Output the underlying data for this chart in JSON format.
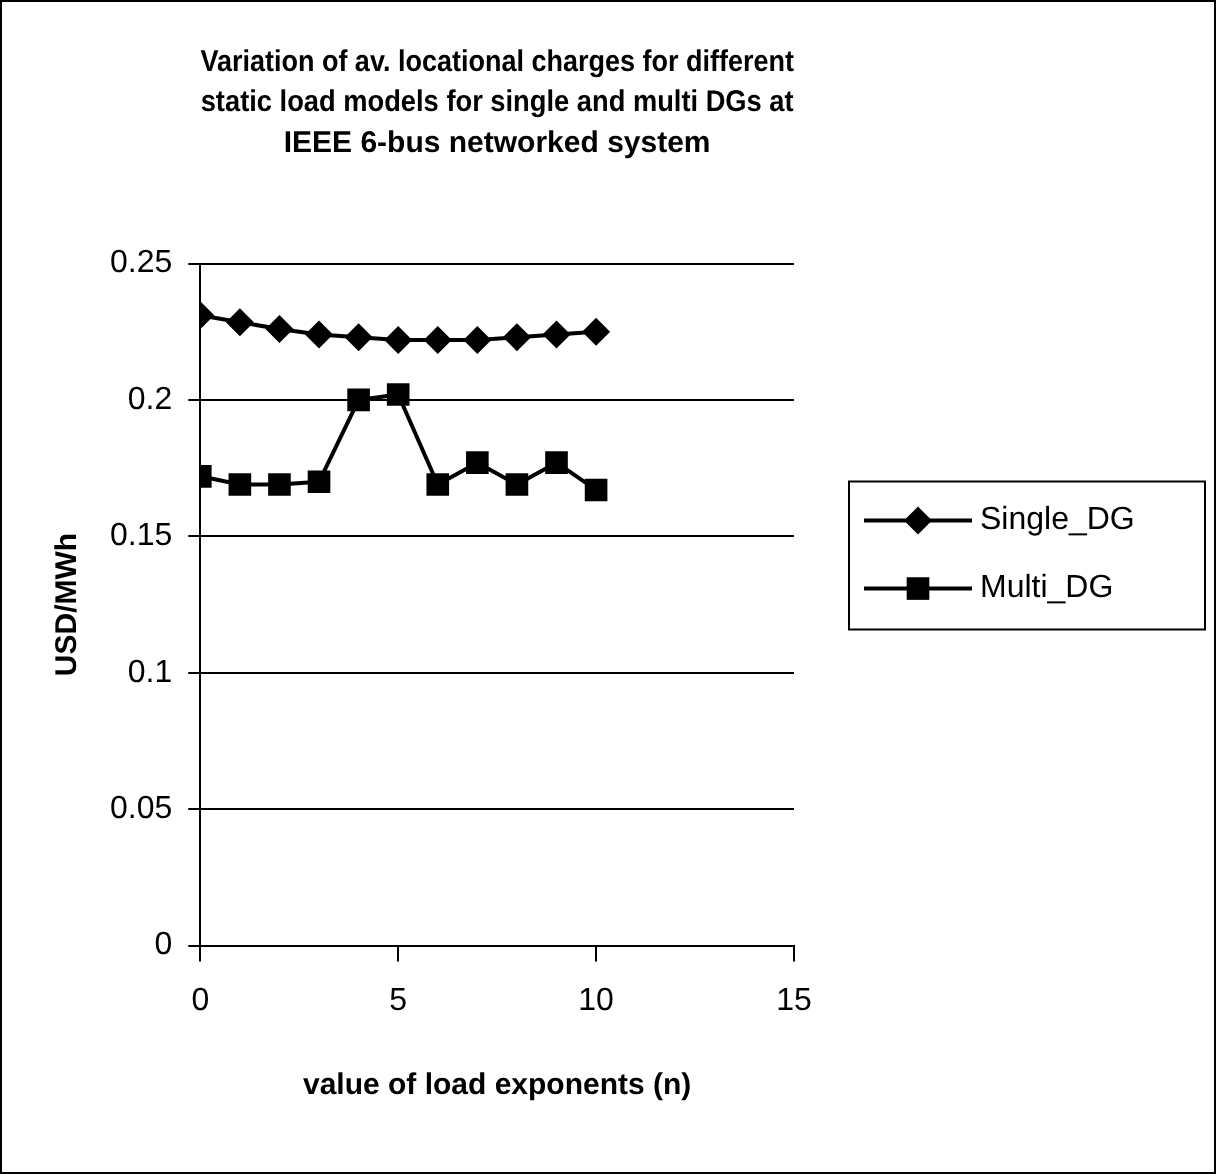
{
  "chart_data": {
    "type": "line",
    "title": "Variation of av. locational charges for different static load models for single and multi DGs at IEEE 6-bus networked system",
    "xlabel": "value of load exponents (n)",
    "ylabel": "USD/MWh",
    "x": [
      0,
      1,
      2,
      3,
      4,
      5,
      6,
      7,
      8,
      9,
      10
    ],
    "series": [
      {
        "name": "Single_DG",
        "color": "#000000",
        "marker": "diamond",
        "values": [
          0.231,
          0.2285,
          0.226,
          0.224,
          0.223,
          0.222,
          0.222,
          0.222,
          0.223,
          0.224,
          0.225
        ]
      },
      {
        "name": "Multi_DG",
        "color": "#000000",
        "marker": "square",
        "values": [
          0.172,
          0.169,
          0.169,
          0.17,
          0.2,
          0.202,
          0.169,
          0.177,
          0.169,
          0.177,
          0.167
        ]
      }
    ],
    "xlim": [
      0,
      15
    ],
    "xticks": [
      0,
      5,
      10,
      15
    ],
    "ylim": [
      0,
      0.25
    ],
    "yticks": [
      0,
      0.05,
      0.1,
      0.15,
      0.2,
      0.25
    ],
    "grid": "y",
    "legend": "right",
    "line_style": "solid"
  }
}
